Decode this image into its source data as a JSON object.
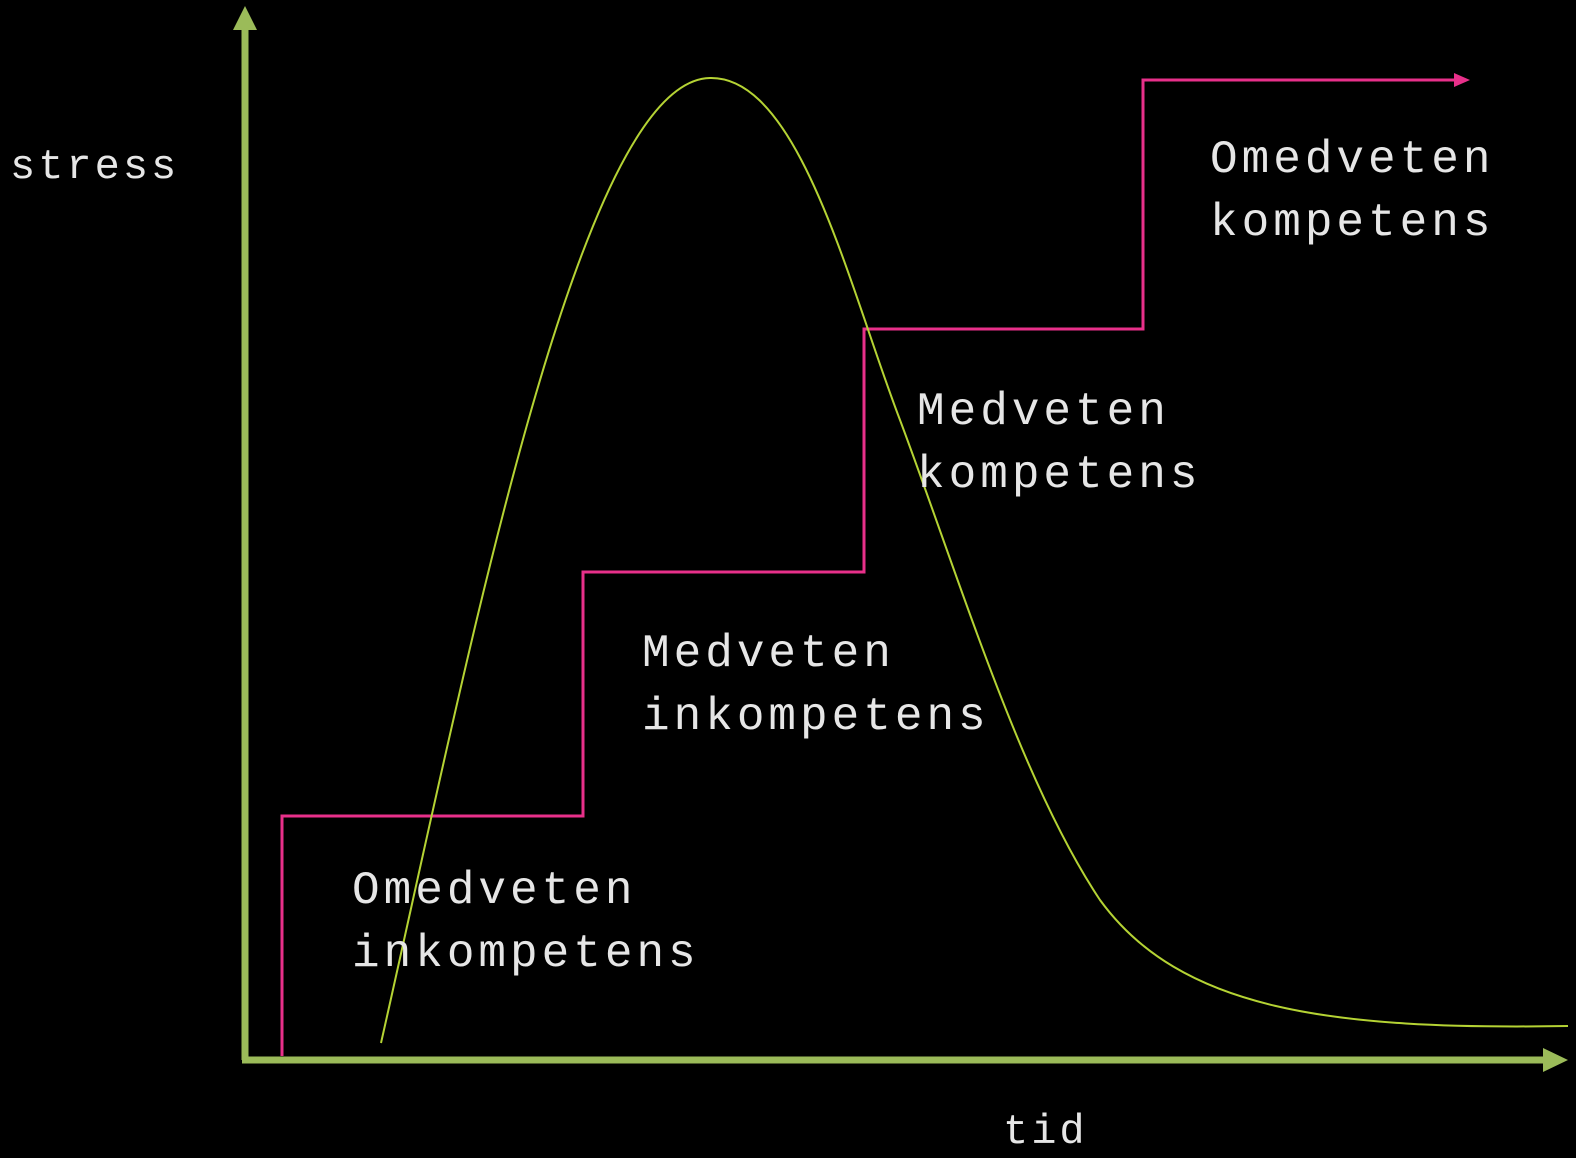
{
  "axes": {
    "y_label": "stress",
    "x_label": "tid"
  },
  "stages": [
    {
      "lines": [
        "Omedveten",
        "inkompetens"
      ]
    },
    {
      "lines": [
        "Medveten",
        "inkompetens"
      ]
    },
    {
      "lines": [
        "Medveten",
        "kompetens"
      ]
    },
    {
      "lines": [
        "Omedveten",
        "kompetens"
      ]
    }
  ]
}
